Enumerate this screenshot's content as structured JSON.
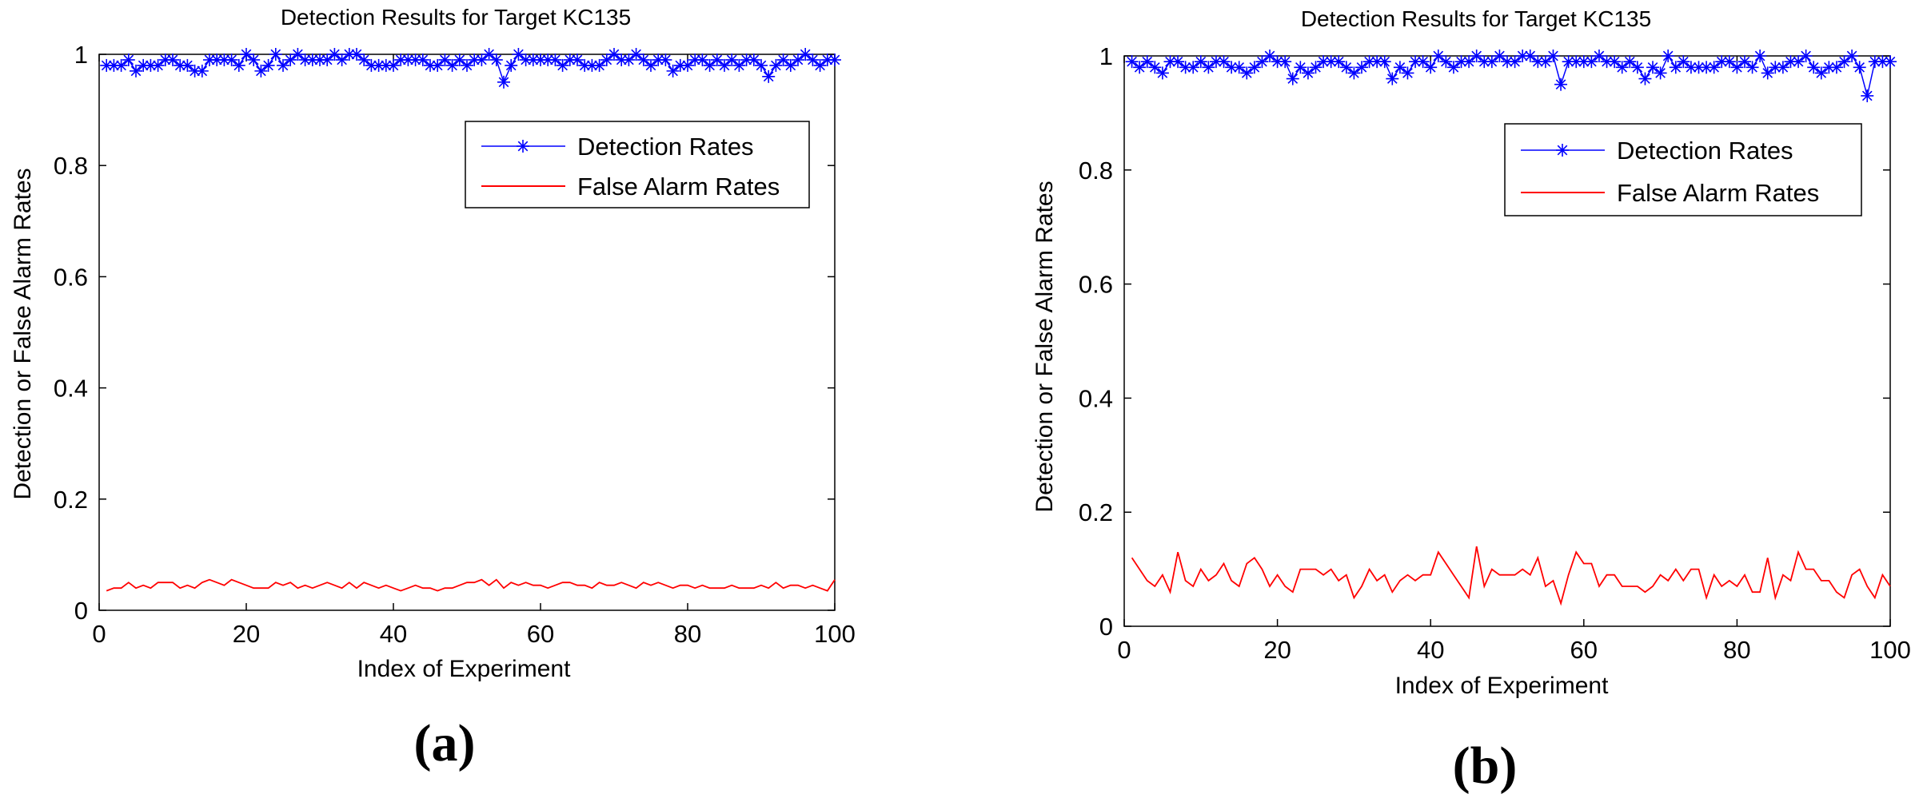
{
  "colors": {
    "detection": "#0000ff",
    "false_alarm": "#ff0000",
    "axes": "#000000"
  },
  "chart_data": [
    {
      "panel_label": "(a)",
      "type": "line",
      "title": "Detection Results for Target KC135",
      "xlabel": "Index of Experiment",
      "ylabel": "Detection or False Alarm Rates",
      "xlim": [
        0,
        100
      ],
      "ylim": [
        0,
        1
      ],
      "xticks": [
        0,
        20,
        40,
        60,
        80,
        100
      ],
      "yticks": [
        0,
        0.2,
        0.4,
        0.6,
        0.8,
        1
      ],
      "xtick_labels": [
        "0",
        "20",
        "40",
        "60",
        "80",
        "100"
      ],
      "ytick_labels": [
        "0",
        "0.2",
        "0.4",
        "0.6",
        "0.8",
        "1"
      ],
      "grid": false,
      "legend_position": "top-right",
      "x": [
        1,
        2,
        3,
        4,
        5,
        6,
        7,
        8,
        9,
        10,
        11,
        12,
        13,
        14,
        15,
        16,
        17,
        18,
        19,
        20,
        21,
        22,
        23,
        24,
        25,
        26,
        27,
        28,
        29,
        30,
        31,
        32,
        33,
        34,
        35,
        36,
        37,
        38,
        39,
        40,
        41,
        42,
        43,
        44,
        45,
        46,
        47,
        48,
        49,
        50,
        51,
        52,
        53,
        54,
        55,
        56,
        57,
        58,
        59,
        60,
        61,
        62,
        63,
        64,
        65,
        66,
        67,
        68,
        69,
        70,
        71,
        72,
        73,
        74,
        75,
        76,
        77,
        78,
        79,
        80,
        81,
        82,
        83,
        84,
        85,
        86,
        87,
        88,
        89,
        90,
        91,
        92,
        93,
        94,
        95,
        96,
        97,
        98,
        99,
        100
      ],
      "series": [
        {
          "name": "Detection Rates",
          "marker": "asterisk",
          "color": "#0000ff",
          "values": [
            0.98,
            0.98,
            0.98,
            0.99,
            0.97,
            0.98,
            0.98,
            0.98,
            0.99,
            0.99,
            0.98,
            0.98,
            0.97,
            0.97,
            0.99,
            0.99,
            0.99,
            0.99,
            0.98,
            1.0,
            0.99,
            0.97,
            0.98,
            1.0,
            0.98,
            0.99,
            1.0,
            0.99,
            0.99,
            0.99,
            0.99,
            1.0,
            0.99,
            1.0,
            1.0,
            0.99,
            0.98,
            0.98,
            0.98,
            0.98,
            0.99,
            0.99,
            0.99,
            0.99,
            0.98,
            0.98,
            0.99,
            0.98,
            0.99,
            0.98,
            0.99,
            0.99,
            1.0,
            0.99,
            0.95,
            0.98,
            1.0,
            0.99,
            0.99,
            0.99,
            0.99,
            0.99,
            0.98,
            0.99,
            0.99,
            0.98,
            0.98,
            0.98,
            0.99,
            1.0,
            0.99,
            0.99,
            1.0,
            0.99,
            0.98,
            0.99,
            0.99,
            0.97,
            0.98,
            0.98,
            0.99,
            0.99,
            0.98,
            0.99,
            0.98,
            0.99,
            0.98,
            0.99,
            0.99,
            0.98,
            0.96,
            0.98,
            0.99,
            0.98,
            0.99,
            1.0,
            0.99,
            0.98,
            0.99,
            0.99
          ]
        },
        {
          "name": "False Alarm Rates",
          "marker": "none",
          "color": "#ff0000",
          "values": [
            0.035,
            0.04,
            0.04,
            0.05,
            0.04,
            0.045,
            0.04,
            0.05,
            0.05,
            0.05,
            0.04,
            0.045,
            0.04,
            0.05,
            0.055,
            0.05,
            0.045,
            0.055,
            0.05,
            0.045,
            0.04,
            0.04,
            0.04,
            0.05,
            0.045,
            0.05,
            0.04,
            0.045,
            0.04,
            0.045,
            0.05,
            0.045,
            0.04,
            0.05,
            0.04,
            0.05,
            0.045,
            0.04,
            0.045,
            0.04,
            0.035,
            0.04,
            0.045,
            0.04,
            0.04,
            0.035,
            0.04,
            0.04,
            0.045,
            0.05,
            0.05,
            0.055,
            0.045,
            0.055,
            0.04,
            0.05,
            0.045,
            0.05,
            0.045,
            0.045,
            0.04,
            0.045,
            0.05,
            0.05,
            0.045,
            0.045,
            0.04,
            0.05,
            0.045,
            0.045,
            0.05,
            0.045,
            0.04,
            0.05,
            0.045,
            0.05,
            0.045,
            0.04,
            0.045,
            0.045,
            0.04,
            0.045,
            0.04,
            0.04,
            0.04,
            0.045,
            0.04,
            0.04,
            0.04,
            0.045,
            0.04,
            0.05,
            0.04,
            0.045,
            0.045,
            0.04,
            0.045,
            0.04,
            0.035,
            0.055
          ]
        }
      ]
    },
    {
      "panel_label": "(b)",
      "type": "line",
      "title": "Detection Results for Target KC135",
      "xlabel": "Index of Experiment",
      "ylabel": "Detection or False Alarm Rates",
      "xlim": [
        0,
        100
      ],
      "ylim": [
        0,
        1
      ],
      "xticks": [
        0,
        20,
        40,
        60,
        80,
        100
      ],
      "yticks": [
        0,
        0.2,
        0.4,
        0.6,
        0.8,
        1
      ],
      "xtick_labels": [
        "0",
        "20",
        "40",
        "60",
        "80",
        "100"
      ],
      "ytick_labels": [
        "0",
        "0.2",
        "0.4",
        "0.6",
        "0.8",
        "1"
      ],
      "grid": false,
      "legend_position": "top-right",
      "x": [
        1,
        2,
        3,
        4,
        5,
        6,
        7,
        8,
        9,
        10,
        11,
        12,
        13,
        14,
        15,
        16,
        17,
        18,
        19,
        20,
        21,
        22,
        23,
        24,
        25,
        26,
        27,
        28,
        29,
        30,
        31,
        32,
        33,
        34,
        35,
        36,
        37,
        38,
        39,
        40,
        41,
        42,
        43,
        44,
        45,
        46,
        47,
        48,
        49,
        50,
        51,
        52,
        53,
        54,
        55,
        56,
        57,
        58,
        59,
        60,
        61,
        62,
        63,
        64,
        65,
        66,
        67,
        68,
        69,
        70,
        71,
        72,
        73,
        74,
        75,
        76,
        77,
        78,
        79,
        80,
        81,
        82,
        83,
        84,
        85,
        86,
        87,
        88,
        89,
        90,
        91,
        92,
        93,
        94,
        95,
        96,
        97,
        98,
        99,
        100
      ],
      "series": [
        {
          "name": "Detection Rates",
          "marker": "asterisk",
          "color": "#0000ff",
          "values": [
            0.99,
            0.98,
            0.99,
            0.98,
            0.97,
            0.99,
            0.99,
            0.98,
            0.98,
            0.99,
            0.98,
            0.99,
            0.99,
            0.98,
            0.98,
            0.97,
            0.98,
            0.99,
            1.0,
            0.99,
            0.99,
            0.96,
            0.98,
            0.97,
            0.98,
            0.99,
            0.99,
            0.99,
            0.98,
            0.97,
            0.98,
            0.99,
            0.99,
            0.99,
            0.96,
            0.98,
            0.97,
            0.99,
            0.99,
            0.98,
            1.0,
            0.99,
            0.98,
            0.99,
            0.99,
            1.0,
            0.99,
            0.99,
            1.0,
            0.99,
            0.99,
            1.0,
            1.0,
            0.99,
            0.99,
            1.0,
            0.95,
            0.99,
            0.99,
            0.99,
            0.99,
            1.0,
            0.99,
            0.99,
            0.98,
            0.99,
            0.98,
            0.96,
            0.98,
            0.97,
            1.0,
            0.98,
            0.99,
            0.98,
            0.98,
            0.98,
            0.98,
            0.99,
            0.99,
            0.98,
            0.99,
            0.98,
            1.0,
            0.97,
            0.98,
            0.98,
            0.99,
            0.99,
            1.0,
            0.98,
            0.97,
            0.98,
            0.98,
            0.99,
            1.0,
            0.98,
            0.93,
            0.99,
            0.99,
            0.99
          ]
        },
        {
          "name": "False Alarm Rates",
          "marker": "none",
          "color": "#ff0000",
          "values": [
            0.12,
            0.1,
            0.08,
            0.07,
            0.09,
            0.06,
            0.13,
            0.08,
            0.07,
            0.1,
            0.08,
            0.09,
            0.11,
            0.08,
            0.07,
            0.11,
            0.12,
            0.1,
            0.07,
            0.09,
            0.07,
            0.06,
            0.1,
            0.1,
            0.1,
            0.09,
            0.1,
            0.08,
            0.09,
            0.05,
            0.07,
            0.1,
            0.08,
            0.09,
            0.06,
            0.08,
            0.09,
            0.08,
            0.09,
            0.09,
            0.13,
            0.11,
            0.09,
            0.07,
            0.05,
            0.14,
            0.07,
            0.1,
            0.09,
            0.09,
            0.09,
            0.1,
            0.09,
            0.12,
            0.07,
            0.08,
            0.04,
            0.09,
            0.13,
            0.11,
            0.11,
            0.07,
            0.09,
            0.09,
            0.07,
            0.07,
            0.07,
            0.06,
            0.07,
            0.09,
            0.08,
            0.1,
            0.08,
            0.1,
            0.1,
            0.05,
            0.09,
            0.07,
            0.08,
            0.07,
            0.09,
            0.06,
            0.06,
            0.12,
            0.05,
            0.09,
            0.08,
            0.13,
            0.1,
            0.1,
            0.08,
            0.08,
            0.06,
            0.05,
            0.09,
            0.1,
            0.07,
            0.05,
            0.09,
            0.07
          ]
        }
      ]
    }
  ]
}
